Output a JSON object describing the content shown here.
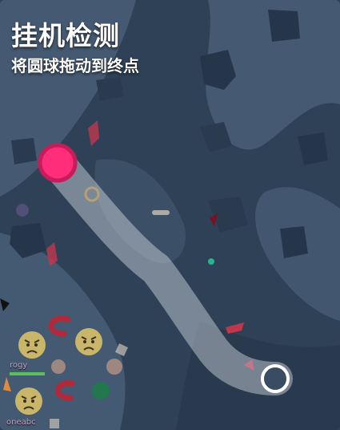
{
  "game": {
    "title": "挂机检测",
    "instruction": "将圆球拖动到终点"
  },
  "players": [
    {
      "name": "rogy"
    },
    {
      "name": "oneabc"
    }
  ],
  "colors": {
    "ball": "#ff2d7a",
    "path": "#d7dde5",
    "background": "#3a4c63"
  },
  "icons": {
    "ball": "pink-circle",
    "goal": "ring-circle",
    "faces": "angry-face"
  }
}
